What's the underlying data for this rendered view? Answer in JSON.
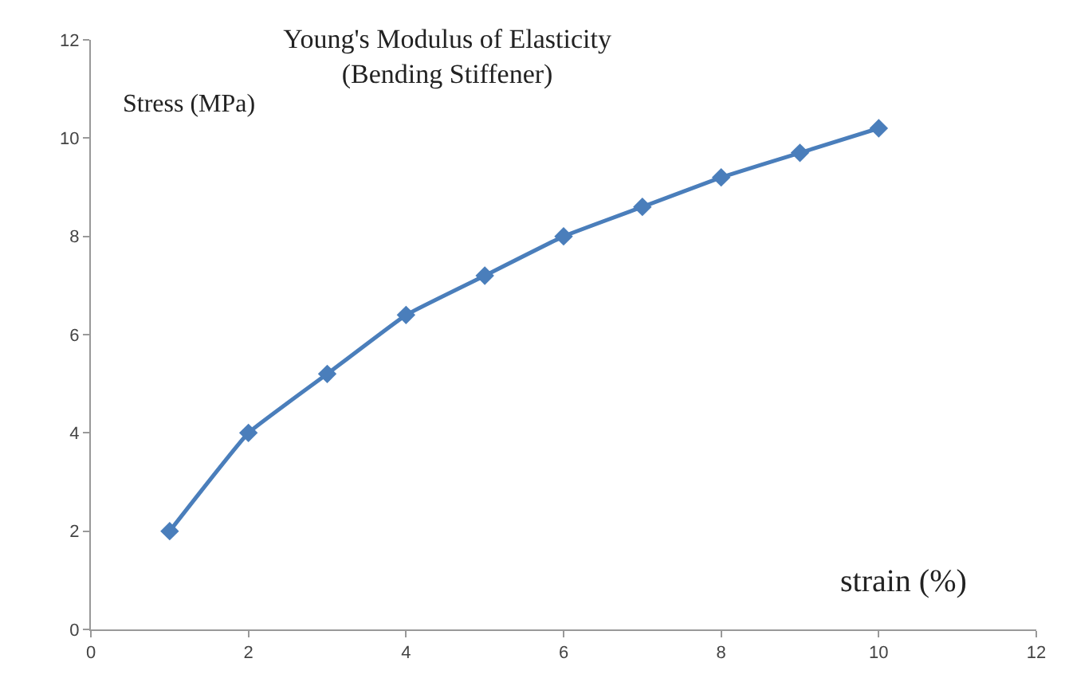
{
  "chart_data": {
    "type": "line",
    "title": "Young's Modulus of Elasticity\n(Bending Stiffener)",
    "xlabel": "strain (%)",
    "ylabel": "Stress (MPa)",
    "x": [
      1,
      2,
      3,
      4,
      5,
      6,
      7,
      8,
      9,
      10
    ],
    "series": [
      {
        "color": "#4a7ebb",
        "values": [
          2,
          4,
          5.2,
          6.4,
          7.2,
          8,
          8.6,
          9.2,
          9.7,
          10.2
        ]
      }
    ],
    "xlim": [
      0,
      12
    ],
    "xticks": [
      0,
      2,
      4,
      6,
      8,
      10,
      12
    ],
    "ylim": [
      0,
      12
    ],
    "yticks": [
      0,
      2,
      4,
      6,
      8,
      10,
      12
    ],
    "marker": "diamond",
    "line_style": "solid"
  }
}
